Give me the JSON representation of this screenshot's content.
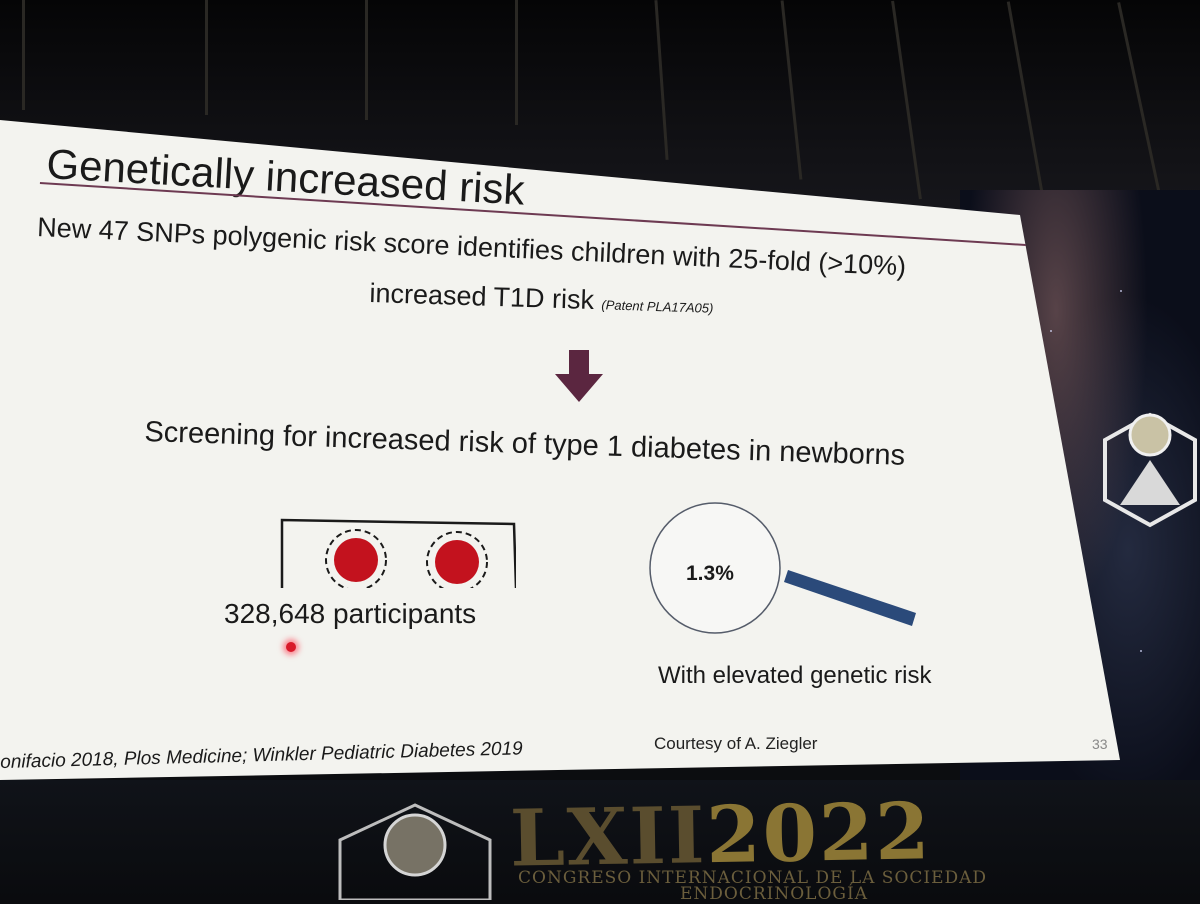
{
  "slide": {
    "title": "Genetically increased risk",
    "subtitle_line1": "New 47 SNPs polygenic risk score identifies children with 25-fold (>10%)",
    "subtitle_line2": "increased T1D risk",
    "patent": "(Patent PLA17A05)",
    "screening_heading": "Screening for increased risk of type 1 diabetes in newborns",
    "participants": "328,648 participants",
    "percentage": "1.3%",
    "elevated_label": "With elevated genetic risk",
    "courtesy": "Courtesy of A. Ziegler",
    "slide_number": "33",
    "citation": "onifacio 2018, Plos Medicine; Winkler Pediatric Diabetes 2019"
  },
  "banner": {
    "roman": "LXII",
    "year": "2022",
    "line1": "CONGRESO INTERNACIONAL DE LA SOCIEDAD",
    "line2": "ENDOCRINOLOGÍA"
  },
  "colors": {
    "arrow": "#5b2640",
    "dot_red": "#c3121e",
    "magnifier_handle": "#2b4a7a",
    "title_rule": "#6d3a52"
  }
}
